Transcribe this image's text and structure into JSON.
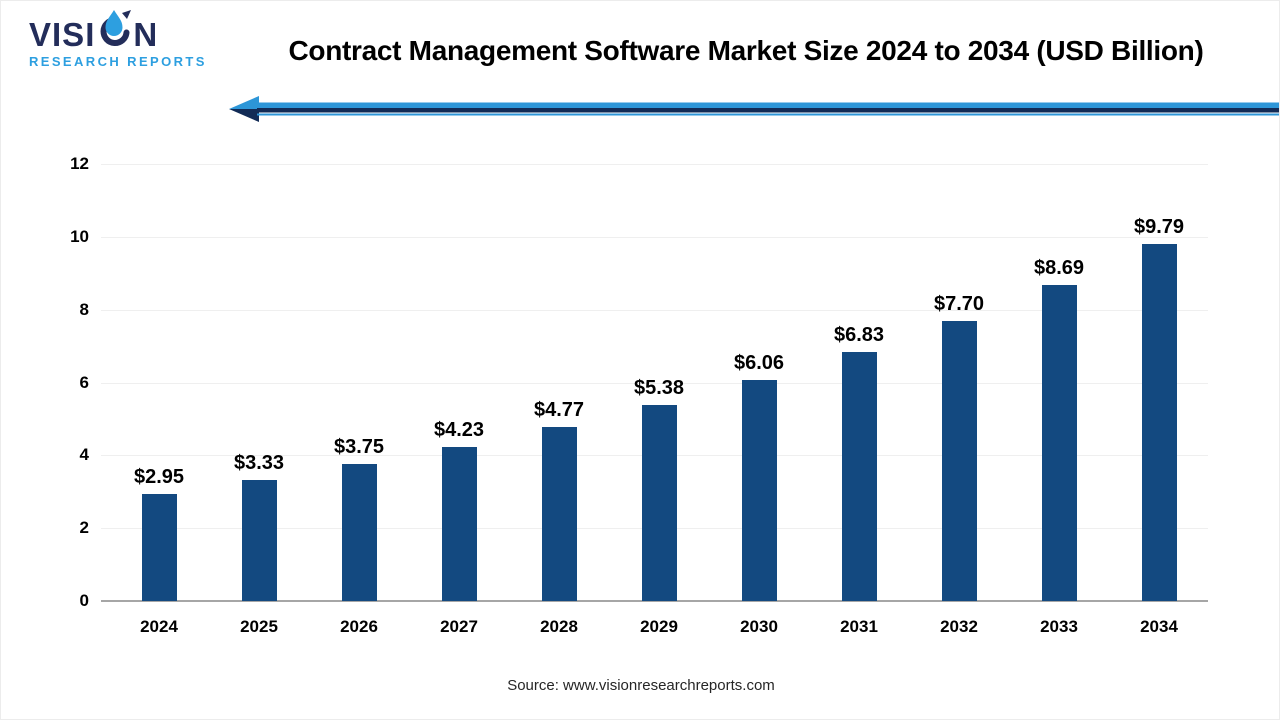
{
  "logo": {
    "brand_prefix": "VISI",
    "brand_suffix": "N",
    "subtitle": "RESEARCH REPORTS"
  },
  "header": {
    "title": "Contract Management Software Market Size 2024 to 2034 (USD Billion)"
  },
  "chart_data": {
    "type": "bar",
    "title": "Contract Management Software Market Size 2024 to 2034 (USD Billion)",
    "categories": [
      "2024",
      "2025",
      "2026",
      "2027",
      "2028",
      "2029",
      "2030",
      "2031",
      "2032",
      "2033",
      "2034"
    ],
    "values": [
      2.95,
      3.33,
      3.75,
      4.23,
      4.77,
      5.38,
      6.06,
      6.83,
      7.7,
      8.69,
      9.79
    ],
    "value_labels": [
      "$2.95",
      "$3.33",
      "$3.75",
      "$4.23",
      "$4.77",
      "$5.38",
      "$6.06",
      "$6.83",
      "$7.70",
      "$8.69",
      "$9.79"
    ],
    "unit": "USD Billion",
    "xlabel": "",
    "ylabel": "",
    "ylim": [
      0,
      12
    ],
    "yticks": [
      0,
      2,
      4,
      6,
      8,
      10,
      12
    ],
    "grid": true,
    "legend": "none"
  },
  "footer": {
    "source": "Source: www.visionresearchreports.com"
  },
  "colors": {
    "bar": "#134980",
    "arrow_light": "#2d96d8",
    "arrow_dark": "#122b56",
    "logo_navy": "#232d5a",
    "logo_blue": "#2d9fe0",
    "axis_line": "#a6a6a6",
    "gridline": "#efefef",
    "title_text": "#000000",
    "source_text": "#262626"
  }
}
